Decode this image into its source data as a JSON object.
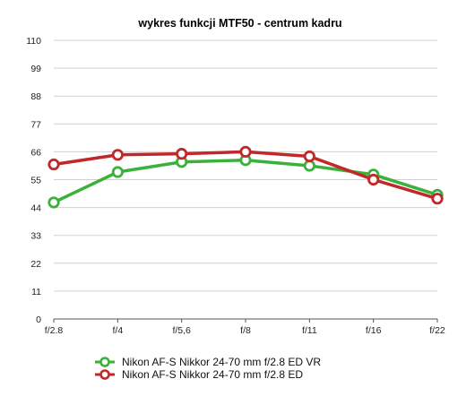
{
  "chart_data": {
    "type": "line",
    "title": "wykres funkcji MTF50 - centrum kadru",
    "xlabel": "",
    "ylabel": "",
    "categories": [
      "f/2.8",
      "f/4",
      "f/5,6",
      "f/8",
      "f/11",
      "f/16",
      "f/22"
    ],
    "ylim": [
      0,
      110
    ],
    "yticks": [
      "0",
      "11",
      "22",
      "33",
      "44",
      "55",
      "66",
      "77",
      "88",
      "99",
      "110"
    ],
    "grid": true,
    "legend_position": "bottom",
    "series": [
      {
        "name": "Nikon AF-S Nikkor 24-70 mm f/2.8 ED VR",
        "color": "#3ab13a",
        "values": [
          46,
          58,
          62,
          62.7,
          60.5,
          57,
          49
        ]
      },
      {
        "name": "Nikon AF-S Nikkor 24-70 mm f/2.8 ED",
        "color": "#c0282a",
        "values": [
          61,
          64.8,
          65.2,
          66,
          64.2,
          55,
          47.5
        ]
      }
    ]
  }
}
